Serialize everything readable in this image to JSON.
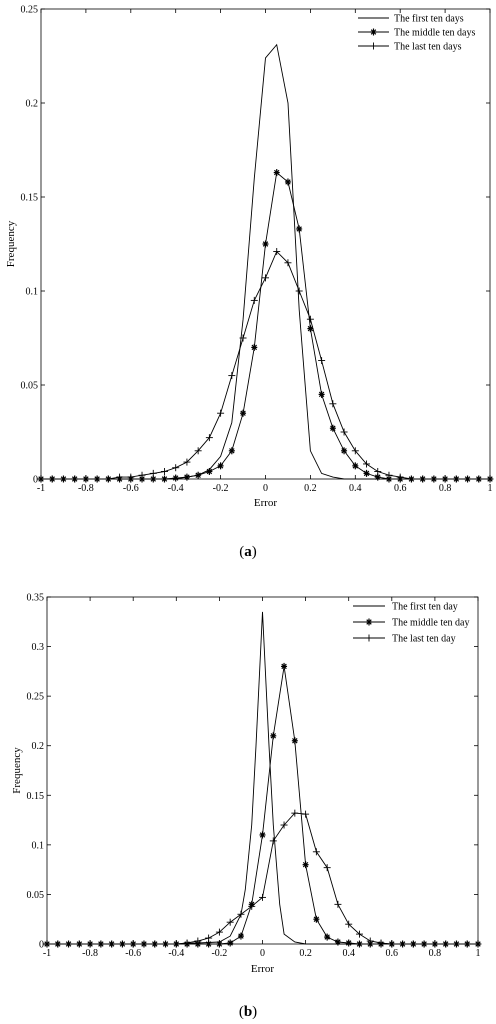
{
  "chart_data": [
    {
      "type": "line",
      "panel_label": "(a)",
      "panel_letter": "a",
      "xlabel": "Error",
      "ylabel": "Frequency",
      "xlim": [
        -1,
        1
      ],
      "ylim": [
        0,
        0.25
      ],
      "xticks": [
        -1,
        -0.8,
        -0.6,
        -0.4,
        -0.2,
        0,
        0.2,
        0.4,
        0.6,
        0.8,
        1
      ],
      "xtick_labels": [
        "-1",
        "-0.8",
        "-0.6",
        "-0.4",
        "-0.2",
        "0",
        "0.2",
        "0.4",
        "0.6",
        "0.8",
        "1"
      ],
      "yticks": [
        0,
        0.05,
        0.1,
        0.15,
        0.2,
        0.25
      ],
      "ytick_labels": [
        "0",
        "0.05",
        "0.1",
        "0.15",
        "0.2",
        "0.25"
      ],
      "legend_position": "top-right",
      "grid": false,
      "series": [
        {
          "name": "The first ten days",
          "marker": "none",
          "x": [
            -1,
            -0.6,
            -0.4,
            -0.3,
            -0.25,
            -0.2,
            -0.15,
            -0.1,
            -0.05,
            0,
            0.05,
            0.1,
            0.15,
            0.2,
            0.25,
            0.3,
            0.35,
            0.4,
            0.6,
            1
          ],
          "y": [
            0,
            0,
            0,
            0.002,
            0.005,
            0.012,
            0.03,
            0.085,
            0.16,
            0.224,
            0.231,
            0.2,
            0.09,
            0.015,
            0.003,
            0.001,
            0,
            0,
            0,
            0
          ]
        },
        {
          "name": "The middle ten days",
          "marker": "star",
          "x": [
            -1,
            -0.95,
            -0.9,
            -0.85,
            -0.8,
            -0.75,
            -0.7,
            -0.65,
            -0.6,
            -0.55,
            -0.5,
            -0.45,
            -0.4,
            -0.35,
            -0.3,
            -0.25,
            -0.2,
            -0.15,
            -0.1,
            -0.05,
            0,
            0.05,
            0.1,
            0.15,
            0.2,
            0.25,
            0.3,
            0.35,
            0.4,
            0.45,
            0.5,
            0.55,
            0.6,
            0.65,
            0.7,
            0.75,
            0.8,
            0.85,
            0.9,
            0.95,
            1
          ],
          "y": [
            0,
            0,
            0,
            0,
            0,
            0,
            0,
            0,
            0,
            0,
            0,
            0,
            0.0005,
            0.001,
            0.002,
            0.004,
            0.007,
            0.015,
            0.035,
            0.07,
            0.125,
            0.163,
            0.158,
            0.133,
            0.08,
            0.045,
            0.027,
            0.015,
            0.007,
            0.003,
            0.001,
            0,
            0,
            0,
            0,
            0,
            0,
            0,
            0,
            0,
            0
          ]
        },
        {
          "name": "The last ten days",
          "marker": "plus",
          "x": [
            -1,
            -0.95,
            -0.9,
            -0.85,
            -0.8,
            -0.75,
            -0.7,
            -0.65,
            -0.6,
            -0.55,
            -0.5,
            -0.45,
            -0.4,
            -0.35,
            -0.3,
            -0.25,
            -0.2,
            -0.15,
            -0.1,
            -0.05,
            0,
            0.05,
            0.1,
            0.15,
            0.2,
            0.25,
            0.3,
            0.35,
            0.4,
            0.45,
            0.5,
            0.55,
            0.6,
            0.65,
            0.7,
            0.75,
            0.8,
            0.85,
            0.9,
            0.95,
            1
          ],
          "y": [
            0,
            0,
            0,
            0,
            0,
            0,
            0,
            0.001,
            0.001,
            0.002,
            0.003,
            0.004,
            0.006,
            0.009,
            0.015,
            0.022,
            0.035,
            0.055,
            0.075,
            0.095,
            0.107,
            0.121,
            0.115,
            0.1,
            0.085,
            0.063,
            0.04,
            0.025,
            0.015,
            0.008,
            0.004,
            0.002,
            0.001,
            0,
            0,
            0,
            0,
            0,
            0,
            0,
            0
          ]
        }
      ]
    },
    {
      "type": "line",
      "panel_label": "(b)",
      "panel_letter": "b",
      "xlabel": "Error",
      "ylabel": "Frequency",
      "xlim": [
        -1,
        1
      ],
      "ylim": [
        0,
        0.35
      ],
      "xticks": [
        -1,
        -0.8,
        -0.6,
        -0.4,
        -0.2,
        0,
        0.2,
        0.4,
        0.6,
        0.8,
        1
      ],
      "xtick_labels": [
        "-1",
        "-0.8",
        "-0.6",
        "-0.4",
        "-0.2",
        "0",
        "0.2",
        "0.4",
        "0.6",
        "0.8",
        "1"
      ],
      "yticks": [
        0,
        0.05,
        0.1,
        0.15,
        0.2,
        0.25,
        0.3,
        0.35
      ],
      "ytick_labels": [
        "0",
        "0.05",
        "0.1",
        "0.15",
        "0.2",
        "0.25",
        "0.3",
        "0.35"
      ],
      "legend_position": "top-right",
      "grid": false,
      "series": [
        {
          "name": "The first ten day",
          "marker": "none",
          "x": [
            -1,
            -0.4,
            -0.2,
            -0.15,
            -0.1,
            -0.08,
            -0.05,
            -0.03,
            0,
            0.03,
            0.05,
            0.08,
            0.1,
            0.15,
            0.2,
            0.4,
            1
          ],
          "y": [
            0,
            0,
            0.002,
            0.008,
            0.03,
            0.055,
            0.12,
            0.2,
            0.335,
            0.2,
            0.12,
            0.04,
            0.01,
            0.002,
            0,
            0,
            0
          ]
        },
        {
          "name": "The middle ten day",
          "marker": "star",
          "x": [
            -1,
            -0.95,
            -0.9,
            -0.85,
            -0.8,
            -0.75,
            -0.7,
            -0.65,
            -0.6,
            -0.55,
            -0.5,
            -0.45,
            -0.4,
            -0.35,
            -0.3,
            -0.25,
            -0.2,
            -0.15,
            -0.1,
            -0.05,
            0,
            0.05,
            0.1,
            0.15,
            0.2,
            0.25,
            0.3,
            0.35,
            0.4,
            0.45,
            0.5,
            0.55,
            0.6,
            0.65,
            0.7,
            0.75,
            0.8,
            0.85,
            0.9,
            0.95,
            1
          ],
          "y": [
            0,
            0,
            0,
            0,
            0,
            0,
            0,
            0,
            0,
            0,
            0,
            0,
            0,
            0,
            0,
            0,
            0,
            0.001,
            0.008,
            0.04,
            0.11,
            0.21,
            0.28,
            0.205,
            0.08,
            0.025,
            0.007,
            0.002,
            0.001,
            0,
            0,
            0,
            0,
            0,
            0,
            0,
            0,
            0,
            0,
            0,
            0
          ]
        },
        {
          "name": "The last ten day",
          "marker": "plus",
          "x": [
            -1,
            -0.95,
            -0.9,
            -0.85,
            -0.8,
            -0.75,
            -0.7,
            -0.65,
            -0.6,
            -0.55,
            -0.5,
            -0.45,
            -0.4,
            -0.35,
            -0.3,
            -0.25,
            -0.2,
            -0.15,
            -0.1,
            -0.05,
            0,
            0.05,
            0.1,
            0.15,
            0.2,
            0.25,
            0.3,
            0.35,
            0.4,
            0.45,
            0.5,
            0.55,
            0.6,
            0.65,
            0.7,
            0.75,
            0.8,
            0.85,
            0.9,
            0.95,
            1
          ],
          "y": [
            0,
            0,
            0,
            0,
            0,
            0,
            0,
            0,
            0,
            0,
            0,
            0,
            0,
            0.001,
            0.003,
            0.006,
            0.012,
            0.022,
            0.03,
            0.038,
            0.047,
            0.104,
            0.12,
            0.132,
            0.131,
            0.093,
            0.077,
            0.04,
            0.02,
            0.01,
            0.003,
            0.001,
            0,
            0,
            0,
            0,
            0,
            0,
            0,
            0,
            0
          ]
        }
      ]
    }
  ]
}
